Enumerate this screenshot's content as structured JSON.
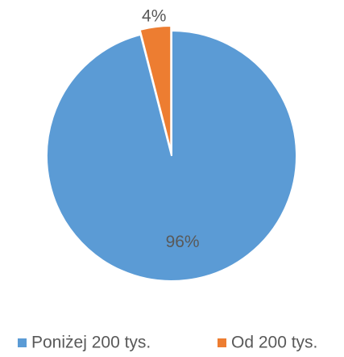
{
  "chart_data": {
    "type": "pie",
    "categories": [
      "Poniżej 200 tys.",
      "Od 200 tys."
    ],
    "values": [
      96,
      4
    ],
    "value_labels": [
      "96%",
      "4%"
    ],
    "colors": [
      "#5b9bd5",
      "#ed7d31"
    ],
    "legend": "bottom"
  }
}
